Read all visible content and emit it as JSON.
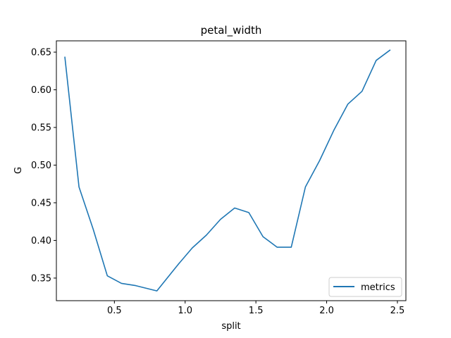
{
  "chart_data": {
    "type": "line",
    "title": "petal_width",
    "xlabel": "split",
    "ylabel": "G",
    "xlim": [
      0.09,
      2.56
    ],
    "ylim": [
      0.32,
      0.665
    ],
    "xticks": [
      0.5,
      1.0,
      1.5,
      2.0,
      2.5
    ],
    "xtick_labels": [
      "0.5",
      "1.0",
      "1.5",
      "2.0",
      "2.5"
    ],
    "yticks": [
      0.35,
      0.4,
      0.45,
      0.5,
      0.55,
      0.6,
      0.65
    ],
    "ytick_labels": [
      "0.35",
      "0.40",
      "0.45",
      "0.50",
      "0.55",
      "0.60",
      "0.65"
    ],
    "grid": false,
    "legend_position": "lower-right",
    "series": [
      {
        "name": "metrics",
        "color": "#1f77b4",
        "x": [
          0.15,
          0.25,
          0.35,
          0.45,
          0.55,
          0.65,
          0.8,
          0.95,
          1.05,
          1.15,
          1.25,
          1.35,
          1.45,
          1.55,
          1.65,
          1.75,
          1.85,
          1.95,
          2.05,
          2.15,
          2.25,
          2.35,
          2.45
        ],
        "y": [
          0.644,
          0.471,
          0.415,
          0.353,
          0.343,
          0.34,
          0.333,
          0.368,
          0.39,
          0.407,
          0.428,
          0.443,
          0.437,
          0.405,
          0.391,
          0.391,
          0.471,
          0.506,
          0.546,
          0.581,
          0.598,
          0.639,
          0.653
        ]
      }
    ]
  }
}
